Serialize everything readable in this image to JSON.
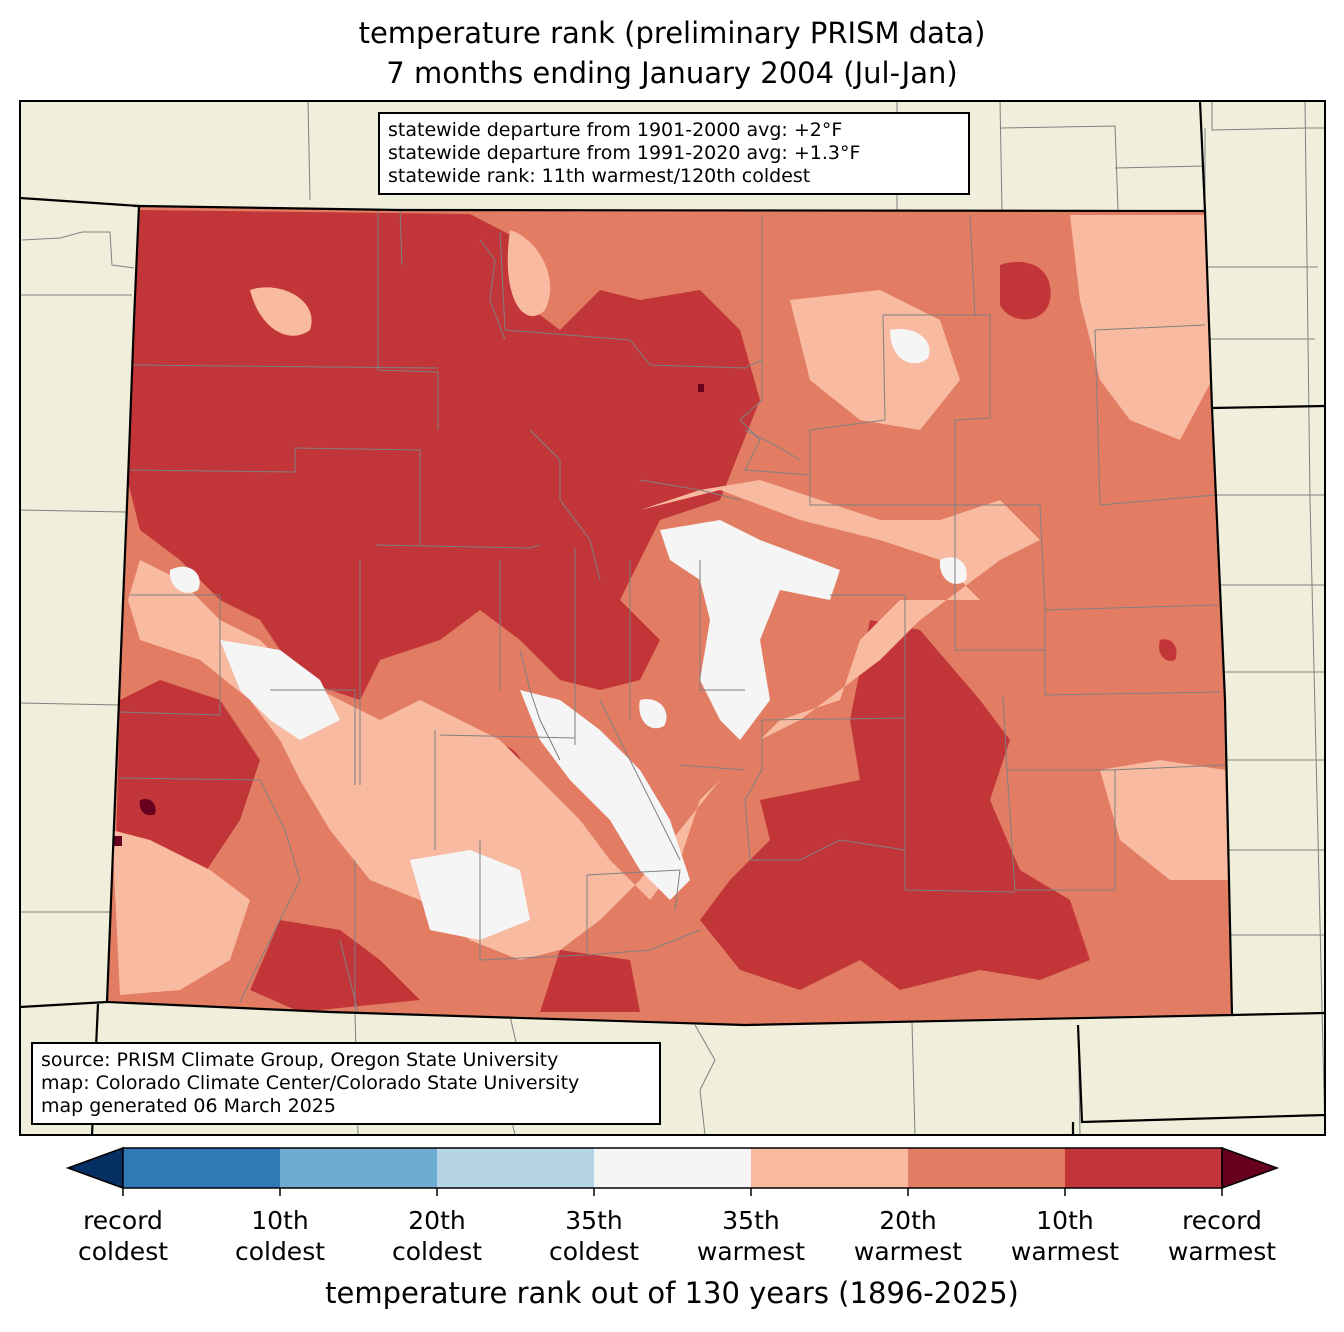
{
  "title": {
    "line1": "temperature rank (preliminary PRISM data)",
    "line2": "7 months ending January 2004 (Jul-Jan)"
  },
  "stats": {
    "line1": "statewide departure from 1901-2000 avg: +2°F",
    "line2": "statewide departure from 1991-2020 avg: +1.3°F",
    "line3": "statewide rank: 11th warmest/120th coldest"
  },
  "source": {
    "line1": "source: PRISM Climate Group, Oregon State University",
    "line2": "map: Colorado Climate Center/Colorado State University",
    "line3": "map generated 06 March 2025"
  },
  "colorbar": {
    "label": "temperature rank out of 130 years (1896-2025)",
    "ticks": [
      {
        "line1": "record",
        "line2": "coldest"
      },
      {
        "line1": "10th",
        "line2": "coldest"
      },
      {
        "line1": "20th",
        "line2": "coldest"
      },
      {
        "line1": "35th",
        "line2": "coldest"
      },
      {
        "line1": "35th",
        "line2": "warmest"
      },
      {
        "line1": "20th",
        "line2": "warmest"
      },
      {
        "line1": "10th",
        "line2": "warmest"
      },
      {
        "line1": "record",
        "line2": "warmest"
      }
    ],
    "under_color": "#053061",
    "over_color": "#67001f",
    "bin_colors": [
      "#2f79b5",
      "#6bacd0",
      "#b5d5e7",
      "#f5f5f5",
      "#f8bba1",
      "#e27d64",
      "#c23639"
    ]
  },
  "colors": {
    "land": "#efefdc",
    "state_border": "#000000",
    "county_border": "#808080",
    "record_warmest": "#67001f",
    "tenth_warmest": "#c23639",
    "twentieth_warmest": "#e27d64",
    "thirtyfifth_warmest": "#f8bba1",
    "near_normal": "#f5f5f5"
  }
}
